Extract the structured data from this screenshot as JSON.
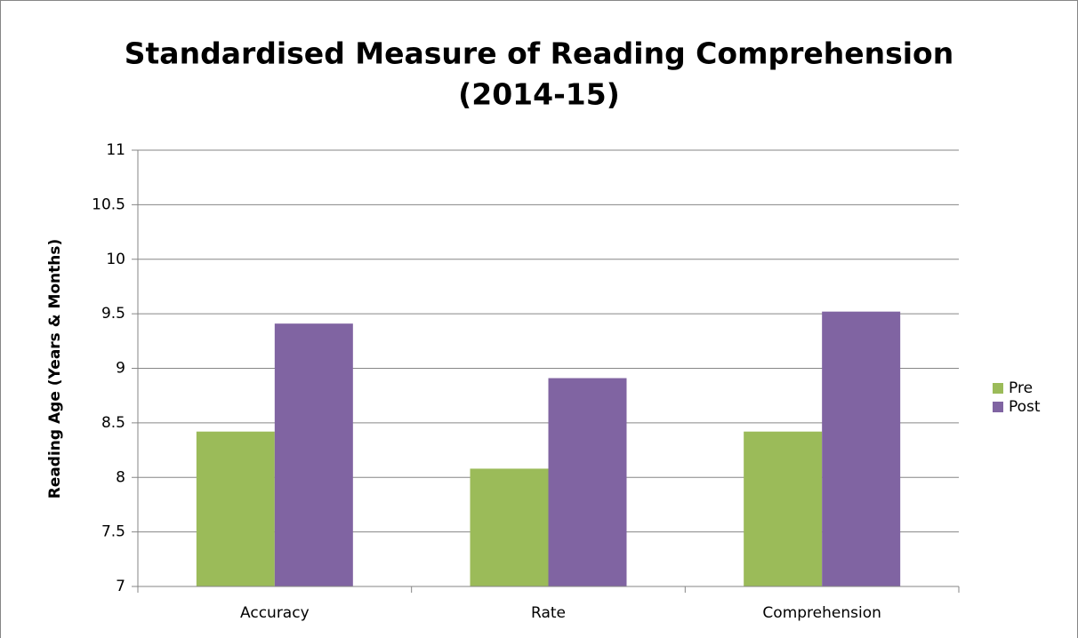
{
  "chart_data": {
    "type": "bar",
    "title": [
      "Standardised Measure of Reading Comprehension",
      "(2014-15)"
    ],
    "y_label": "Reading Age (Years & Months)",
    "categories": [
      "Accuracy",
      "Rate",
      "Comprehension"
    ],
    "series": [
      {
        "name": "Pre",
        "color": "#9bbb59",
        "values": [
          8.42,
          8.08,
          8.42
        ]
      },
      {
        "name": "Post",
        "color": "#8064a2",
        "values": [
          9.41,
          8.91,
          9.52
        ]
      }
    ],
    "ylim": [
      7,
      11
    ],
    "yticks": [
      7,
      7.5,
      8,
      8.5,
      9,
      9.5,
      10,
      10.5,
      11
    ],
    "grid": true,
    "legend": "right"
  }
}
